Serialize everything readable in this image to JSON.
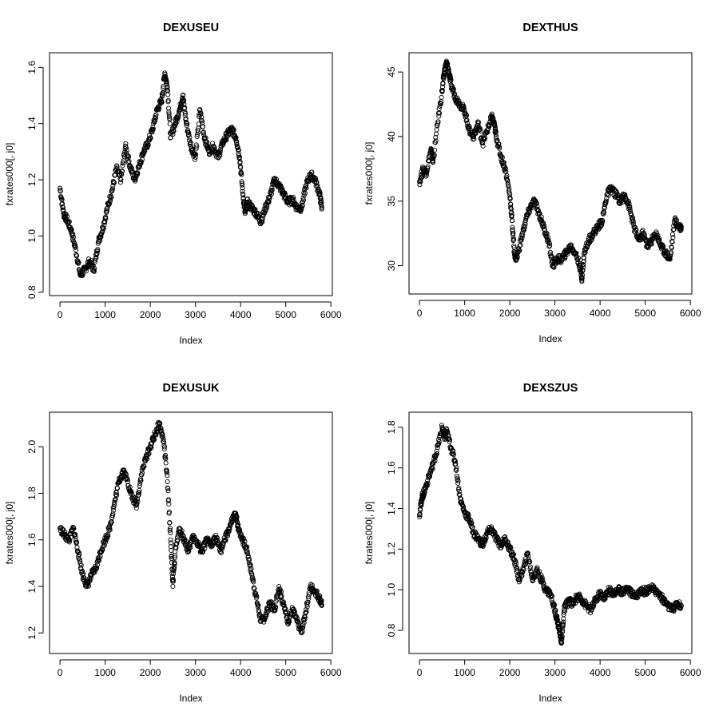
{
  "chart_data": [
    {
      "type": "scatter",
      "title": "DEXUSEU",
      "xlabel": "Index",
      "ylabel": "fxrates000[, j0]",
      "xlim": [
        0,
        5800
      ],
      "ylim": [
        0.82,
        1.62
      ],
      "xticks": [
        0,
        1000,
        2000,
        3000,
        4000,
        5000,
        6000
      ],
      "yticks": [
        0.8,
        1.0,
        1.2,
        1.4,
        1.6
      ],
      "ytick_labels": [
        "0.8",
        "1.0",
        "1.2",
        "1.4",
        "1.6"
      ],
      "x": [
        0,
        80,
        150,
        250,
        350,
        450,
        550,
        650,
        750,
        850,
        950,
        1050,
        1150,
        1250,
        1350,
        1450,
        1550,
        1650,
        1750,
        1850,
        1950,
        2050,
        2150,
        2250,
        2320,
        2380,
        2450,
        2550,
        2650,
        2720,
        2800,
        2900,
        3000,
        3100,
        3200,
        3300,
        3400,
        3500,
        3600,
        3700,
        3800,
        3900,
        3980,
        4050,
        4100,
        4150,
        4250,
        4350,
        4450,
        4550,
        4650,
        4750,
        4850,
        4950,
        5050,
        5150,
        5250,
        5350,
        5450,
        5550,
        5650,
        5750,
        5800
      ],
      "y": [
        1.17,
        1.08,
        1.06,
        1.02,
        0.95,
        0.86,
        0.88,
        0.91,
        0.88,
        0.98,
        1.03,
        1.1,
        1.16,
        1.24,
        1.2,
        1.32,
        1.25,
        1.2,
        1.25,
        1.3,
        1.33,
        1.38,
        1.45,
        1.48,
        1.58,
        1.53,
        1.35,
        1.4,
        1.45,
        1.5,
        1.4,
        1.32,
        1.28,
        1.45,
        1.35,
        1.3,
        1.32,
        1.28,
        1.33,
        1.36,
        1.38,
        1.35,
        1.28,
        1.15,
        1.08,
        1.12,
        1.1,
        1.08,
        1.05,
        1.1,
        1.14,
        1.2,
        1.18,
        1.15,
        1.12,
        1.13,
        1.1,
        1.1,
        1.18,
        1.22,
        1.2,
        1.15,
        1.1
      ]
    },
    {
      "type": "scatter",
      "title": "DEXTHUS",
      "xlabel": "Index",
      "ylabel": "fxrates000[, j0]",
      "xlim": [
        0,
        5800
      ],
      "ylim": [
        28.5,
        45.8
      ],
      "xticks": [
        0,
        1000,
        2000,
        3000,
        4000,
        5000,
        6000
      ],
      "yticks": [
        30,
        35,
        40,
        45
      ],
      "ytick_labels": [
        "30",
        "35",
        "40",
        "45"
      ],
      "x": [
        0,
        80,
        150,
        250,
        300,
        400,
        500,
        550,
        600,
        650,
        700,
        800,
        900,
        1000,
        1100,
        1200,
        1300,
        1400,
        1500,
        1600,
        1650,
        1700,
        1800,
        1900,
        2000,
        2050,
        2100,
        2150,
        2250,
        2350,
        2450,
        2550,
        2650,
        2750,
        2850,
        2950,
        3050,
        3150,
        3250,
        3350,
        3450,
        3550,
        3600,
        3650,
        3750,
        3850,
        3950,
        4050,
        4150,
        4250,
        4350,
        4450,
        4550,
        4650,
        4750,
        4850,
        4950,
        5050,
        5150,
        5250,
        5350,
        5450,
        5550,
        5650,
        5750,
        5800
      ],
      "y": [
        36.5,
        37.5,
        37.2,
        39.0,
        38.0,
        41.0,
        43.5,
        45.0,
        45.7,
        45.0,
        44.0,
        43.0,
        42.5,
        42.0,
        40.5,
        40.0,
        41.0,
        39.5,
        40.5,
        41.5,
        41.0,
        40.0,
        38.5,
        37.5,
        35.5,
        33.5,
        31.0,
        30.5,
        32.0,
        33.5,
        34.5,
        35.0,
        34.0,
        33.0,
        32.0,
        30.0,
        30.5,
        30.5,
        31.0,
        31.5,
        31.0,
        30.0,
        29.0,
        31.0,
        32.0,
        32.5,
        33.0,
        33.5,
        35.5,
        36.0,
        35.5,
        35.0,
        35.5,
        34.5,
        33.0,
        32.0,
        32.5,
        31.5,
        32.0,
        32.5,
        31.5,
        31.0,
        30.5,
        33.5,
        33.0,
        33.0
      ]
    },
    {
      "type": "scatter",
      "title": "DEXUSUK",
      "xlabel": "Index",
      "ylabel": "fxrates000[, j0]",
      "xlim": [
        0,
        5800
      ],
      "ylim": [
        1.15,
        2.11
      ],
      "xticks": [
        0,
        1000,
        2000,
        3000,
        4000,
        5000,
        6000
      ],
      "yticks": [
        1.2,
        1.4,
        1.6,
        1.8,
        2.0
      ],
      "ytick_labels": [
        "1.2",
        "1.4",
        "1.6",
        "1.8",
        "2.0"
      ],
      "x": [
        0,
        100,
        200,
        300,
        400,
        500,
        600,
        700,
        800,
        900,
        1000,
        1100,
        1200,
        1300,
        1400,
        1500,
        1600,
        1700,
        1800,
        1900,
        2000,
        2100,
        2200,
        2300,
        2380,
        2450,
        2500,
        2550,
        2650,
        2750,
        2850,
        2950,
        3050,
        3150,
        3250,
        3350,
        3450,
        3550,
        3650,
        3750,
        3850,
        3900,
        3950,
        4050,
        4150,
        4250,
        4350,
        4450,
        4550,
        4650,
        4750,
        4850,
        4950,
        5050,
        5150,
        5250,
        5350,
        5450,
        5550,
        5650,
        5750,
        5800
      ],
      "y": [
        1.65,
        1.62,
        1.6,
        1.65,
        1.55,
        1.45,
        1.4,
        1.45,
        1.48,
        1.55,
        1.6,
        1.65,
        1.75,
        1.85,
        1.9,
        1.85,
        1.78,
        1.75,
        1.88,
        1.95,
        2.0,
        2.05,
        2.1,
        2.02,
        1.85,
        1.6,
        1.4,
        1.55,
        1.65,
        1.6,
        1.55,
        1.62,
        1.58,
        1.55,
        1.6,
        1.57,
        1.62,
        1.55,
        1.6,
        1.65,
        1.7,
        1.7,
        1.65,
        1.6,
        1.55,
        1.45,
        1.35,
        1.25,
        1.27,
        1.33,
        1.3,
        1.4,
        1.32,
        1.25,
        1.3,
        1.25,
        1.2,
        1.3,
        1.4,
        1.38,
        1.35,
        1.32
      ]
    },
    {
      "type": "scatter",
      "title": "DEXSZUS",
      "xlabel": "Index",
      "ylabel": "fxrates000[, j0]",
      "xlim": [
        0,
        5800
      ],
      "ylim": [
        0.73,
        1.83
      ],
      "xticks": [
        0,
        1000,
        2000,
        3000,
        4000,
        5000,
        6000
      ],
      "yticks": [
        0.8,
        1.0,
        1.2,
        1.4,
        1.6,
        1.8
      ],
      "ytick_labels": [
        "0.8",
        "1.0",
        "1.2",
        "1.4",
        "1.6",
        "1.8"
      ],
      "x": [
        0,
        50,
        100,
        200,
        300,
        400,
        500,
        550,
        600,
        700,
        800,
        900,
        1000,
        1100,
        1200,
        1300,
        1400,
        1500,
        1600,
        1700,
        1800,
        1900,
        2000,
        2100,
        2200,
        2300,
        2400,
        2500,
        2600,
        2700,
        2800,
        2900,
        3000,
        3050,
        3100,
        3150,
        3200,
        3300,
        3400,
        3500,
        3600,
        3700,
        3800,
        3900,
        4000,
        4100,
        4200,
        4300,
        4400,
        4500,
        4600,
        4700,
        4800,
        4900,
        5000,
        5100,
        5200,
        5300,
        5400,
        5500,
        5600,
        5700,
        5800
      ],
      "y": [
        1.37,
        1.45,
        1.48,
        1.55,
        1.62,
        1.7,
        1.8,
        1.75,
        1.78,
        1.7,
        1.62,
        1.45,
        1.38,
        1.35,
        1.28,
        1.25,
        1.22,
        1.28,
        1.3,
        1.25,
        1.22,
        1.25,
        1.2,
        1.15,
        1.05,
        1.1,
        1.18,
        1.05,
        1.1,
        1.05,
        1.0,
        0.98,
        0.9,
        0.85,
        0.8,
        0.74,
        0.9,
        0.95,
        0.93,
        0.97,
        0.95,
        0.92,
        0.9,
        0.95,
        0.98,
        0.96,
        1.0,
        0.98,
        1.0,
        0.99,
        1.01,
        0.98,
        0.97,
        1.0,
        0.99,
        1.01,
        1.0,
        0.98,
        0.95,
        0.92,
        0.9,
        0.93,
        0.92
      ]
    }
  ]
}
